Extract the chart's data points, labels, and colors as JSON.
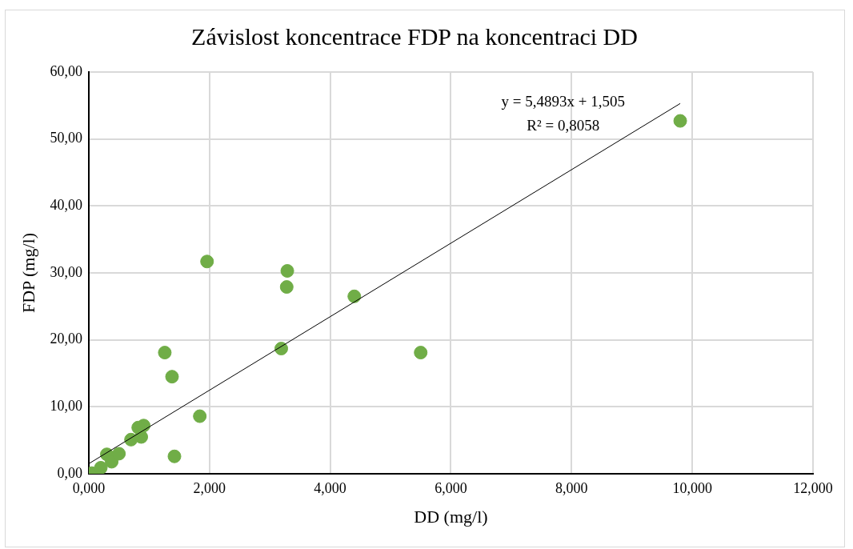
{
  "chart_data": {
    "type": "scatter",
    "title": "Závislost koncentrace FDP na koncentraci DD",
    "xlabel": "DD (mg/l)",
    "ylabel": "FDP (mg/l)",
    "xlim": [
      0,
      12
    ],
    "ylim": [
      0,
      60
    ],
    "xticks": [
      {
        "value": 0,
        "label": "0,000"
      },
      {
        "value": 2,
        "label": "2,000"
      },
      {
        "value": 4,
        "label": "4,000"
      },
      {
        "value": 6,
        "label": "6,000"
      },
      {
        "value": 8,
        "label": "8,000"
      },
      {
        "value": 10,
        "label": "10,000"
      },
      {
        "value": 12,
        "label": "12,000"
      }
    ],
    "yticks": [
      {
        "value": 0,
        "label": "0,00"
      },
      {
        "value": 10,
        "label": "10,00"
      },
      {
        "value": 20,
        "label": "20,00"
      },
      {
        "value": 30,
        "label": "30,00"
      },
      {
        "value": 40,
        "label": "40,00"
      },
      {
        "value": 50,
        "label": "50,00"
      },
      {
        "value": 60,
        "label": "60,00"
      }
    ],
    "grid": true,
    "legend": false,
    "marker": "circle",
    "series": [
      {
        "color": "#70ad47",
        "x": [
          9.8,
          1.96,
          3.29,
          3.28,
          4.4,
          5.5,
          3.19,
          1.26,
          1.38,
          1.84,
          1.42,
          0.91,
          0.82,
          0.7,
          0.87,
          0.05,
          0.2,
          0.3,
          0.38,
          0.5
        ],
        "values": [
          52.7,
          31.7,
          30.3,
          27.9,
          26.5,
          18.1,
          18.7,
          18.1,
          14.5,
          8.6,
          2.6,
          7.2,
          6.9,
          5.1,
          5.5,
          0.1,
          0.9,
          2.9,
          1.8,
          3.0
        ]
      },
      {
        "type": "line",
        "color": "#000000",
        "x": [
          0,
          9.8
        ],
        "values": [
          1.5,
          55.3
        ],
        "marker": "none"
      }
    ],
    "annotations": [
      "y = 5,4893x + 1,505",
      "R² = 0,8058"
    ]
  }
}
